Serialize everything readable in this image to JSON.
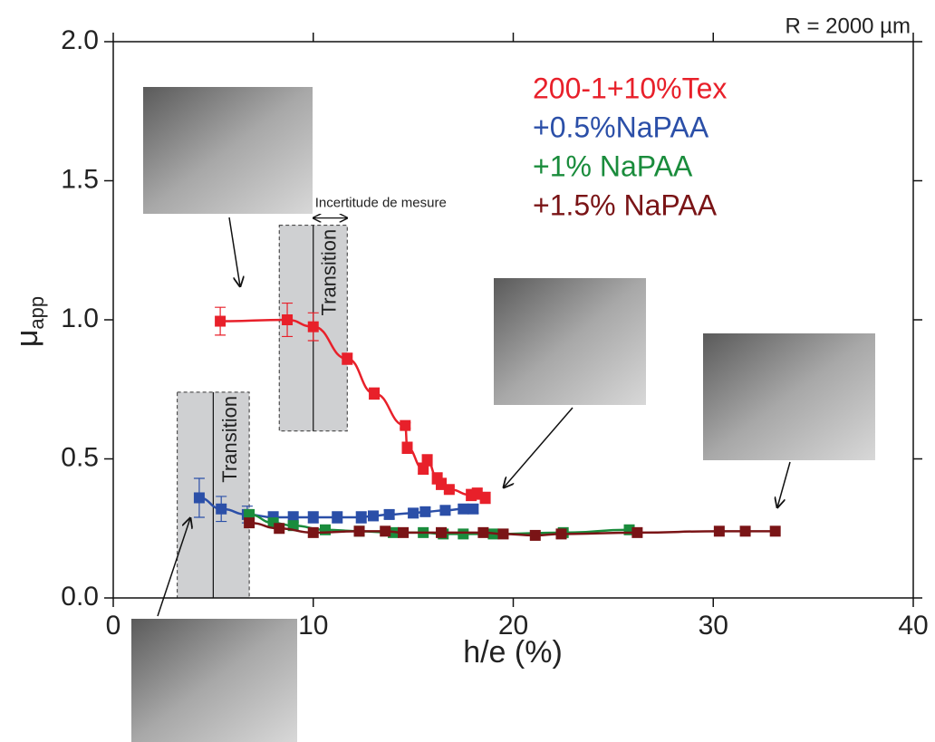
{
  "chart_data": {
    "type": "scatter",
    "annotation": "R = 2000 µm",
    "uncertainty_label": "Incertitude de mesure",
    "x_label": "h/e (%)",
    "y_label": "μ",
    "y_label_sub": "app",
    "xlim": [
      0,
      40
    ],
    "ylim": [
      0,
      2
    ],
    "xticks": [
      0,
      10,
      20,
      30,
      40
    ],
    "yticks": [
      {
        "value": 0,
        "label": "0.0"
      },
      {
        "value": 0.5,
        "label": "0.5"
      },
      {
        "value": 1,
        "label": "1.0"
      },
      {
        "value": 1.5,
        "label": "1.5"
      },
      {
        "value": 2,
        "label": "2.0"
      }
    ],
    "transition_regions": [
      {
        "label": "Transition",
        "xlim": [
          3.2,
          6.8
        ],
        "ylim": [
          0,
          0.74
        ],
        "center": 5
      },
      {
        "label": "Transition",
        "xlim": [
          8.3,
          11.7
        ],
        "ylim": [
          0.6,
          1.34
        ],
        "center": 10
      }
    ],
    "series": [
      {
        "name": "200-1+10%Tex",
        "color": "#e8202a",
        "x": [
          5.35,
          8.7,
          10.0,
          11.7,
          13.05,
          14.6,
          14.7,
          15.5,
          15.7,
          16.2,
          16.4,
          16.8,
          17.9,
          18.2,
          18.6
        ],
        "values": [
          0.995,
          1.0,
          0.975,
          0.86,
          0.735,
          0.62,
          0.54,
          0.465,
          0.495,
          0.43,
          0.41,
          0.39,
          0.37,
          0.375,
          0.36
        ],
        "errors": [
          0.05,
          0.06,
          0.05,
          0.02,
          0.02,
          0.01,
          0.02,
          0.02,
          0.02,
          0.02,
          0.02,
          0.01,
          0.02,
          0.02,
          0.02
        ]
      },
      {
        "name": "+0.5%NaPAA",
        "color": "#2b4fa8",
        "x": [
          4.3,
          5.4,
          6.7,
          8.0,
          9.0,
          10.0,
          11.2,
          12.4,
          13.0,
          13.8,
          15.0,
          15.6,
          16.6,
          17.5,
          18.0
        ],
        "values": [
          0.36,
          0.32,
          0.3,
          0.29,
          0.29,
          0.29,
          0.29,
          0.29,
          0.295,
          0.3,
          0.305,
          0.31,
          0.315,
          0.32,
          0.32
        ],
        "errors": [
          0.07,
          0.045,
          0.03,
          0.02,
          0.02,
          0.02,
          0.02,
          0.02,
          0.015,
          0.015,
          0.015,
          0.015,
          0.015,
          0.015,
          0.015
        ]
      },
      {
        "name": "+1% NaPAA",
        "color": "#1a8c3c",
        "x": [
          6.8,
          8.0,
          9.0,
          10.6,
          12.3,
          14.0,
          15.5,
          16.5,
          17.5,
          19.0,
          22.5,
          25.8
        ],
        "values": [
          0.3,
          0.27,
          0.26,
          0.245,
          0.24,
          0.235,
          0.235,
          0.23,
          0.23,
          0.23,
          0.235,
          0.245
        ]
      },
      {
        "name": "+1.5% NaPAA",
        "color": "#7a1416",
        "x": [
          6.8,
          8.3,
          10.0,
          12.3,
          13.6,
          14.5,
          16.4,
          18.5,
          19.5,
          21.1,
          22.4,
          26.2,
          30.3,
          31.6,
          33.1
        ],
        "values": [
          0.27,
          0.25,
          0.235,
          0.24,
          0.24,
          0.235,
          0.235,
          0.235,
          0.23,
          0.225,
          0.23,
          0.235,
          0.24,
          0.24,
          0.24
        ]
      }
    ]
  }
}
